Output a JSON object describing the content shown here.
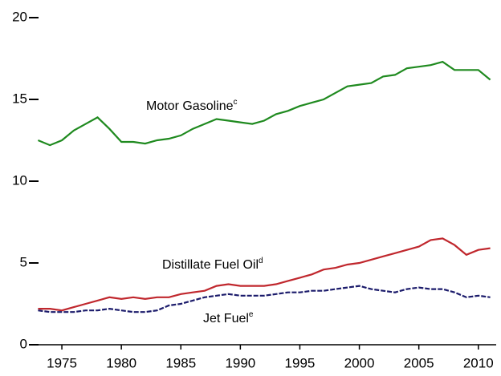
{
  "chart_data": {
    "type": "line",
    "x": [
      1973,
      1974,
      1975,
      1976,
      1977,
      1978,
      1979,
      1980,
      1981,
      1982,
      1983,
      1984,
      1985,
      1986,
      1987,
      1988,
      1989,
      1990,
      1991,
      1992,
      1993,
      1994,
      1995,
      1996,
      1997,
      1998,
      1999,
      2000,
      2001,
      2002,
      2003,
      2004,
      2005,
      2006,
      2007,
      2008,
      2009,
      2010,
      2011
    ],
    "series": [
      {
        "name": "Motor Gasoline",
        "note": "c",
        "color": "#1f8a1f",
        "dashed": false,
        "values": [
          12.5,
          12.2,
          12.5,
          13.1,
          13.5,
          13.9,
          13.2,
          12.4,
          12.4,
          12.3,
          12.5,
          12.6,
          12.8,
          13.2,
          13.5,
          13.8,
          13.7,
          13.6,
          13.5,
          13.7,
          14.1,
          14.3,
          14.6,
          14.8,
          15.0,
          15.4,
          15.8,
          15.9,
          16.0,
          16.4,
          16.5,
          16.9,
          17.0,
          17.1,
          17.3,
          16.8,
          16.8,
          16.8,
          16.2
        ]
      },
      {
        "name": "Distillate Fuel Oil",
        "note": "d",
        "color": "#c0272d",
        "dashed": false,
        "values": [
          2.2,
          2.2,
          2.1,
          2.3,
          2.5,
          2.7,
          2.9,
          2.8,
          2.9,
          2.8,
          2.9,
          2.9,
          3.1,
          3.2,
          3.3,
          3.6,
          3.7,
          3.6,
          3.6,
          3.6,
          3.7,
          3.9,
          4.1,
          4.3,
          4.6,
          4.7,
          4.9,
          5.0,
          5.2,
          5.4,
          5.6,
          5.8,
          6.0,
          6.4,
          6.5,
          6.1,
          5.5,
          5.8,
          5.9
        ]
      },
      {
        "name": "Jet Fuel",
        "note": "e",
        "color": "#1b1b6b",
        "dashed": true,
        "values": [
          2.1,
          2.0,
          2.0,
          2.0,
          2.1,
          2.1,
          2.2,
          2.1,
          2.0,
          2.0,
          2.1,
          2.4,
          2.5,
          2.7,
          2.9,
          3.0,
          3.1,
          3.0,
          3.0,
          3.0,
          3.1,
          3.2,
          3.2,
          3.3,
          3.3,
          3.4,
          3.5,
          3.6,
          3.4,
          3.3,
          3.2,
          3.4,
          3.5,
          3.4,
          3.4,
          3.2,
          2.9,
          3.0,
          2.9
        ]
      }
    ],
    "xlim": [
      1972.5,
      2011.5
    ],
    "xticks": [
      1975,
      1980,
      1985,
      1990,
      1995,
      2000,
      2005,
      2010
    ],
    "ylim": [
      0,
      20
    ],
    "yticks": [
      0,
      5,
      10,
      15,
      20
    ],
    "grid": false
  }
}
